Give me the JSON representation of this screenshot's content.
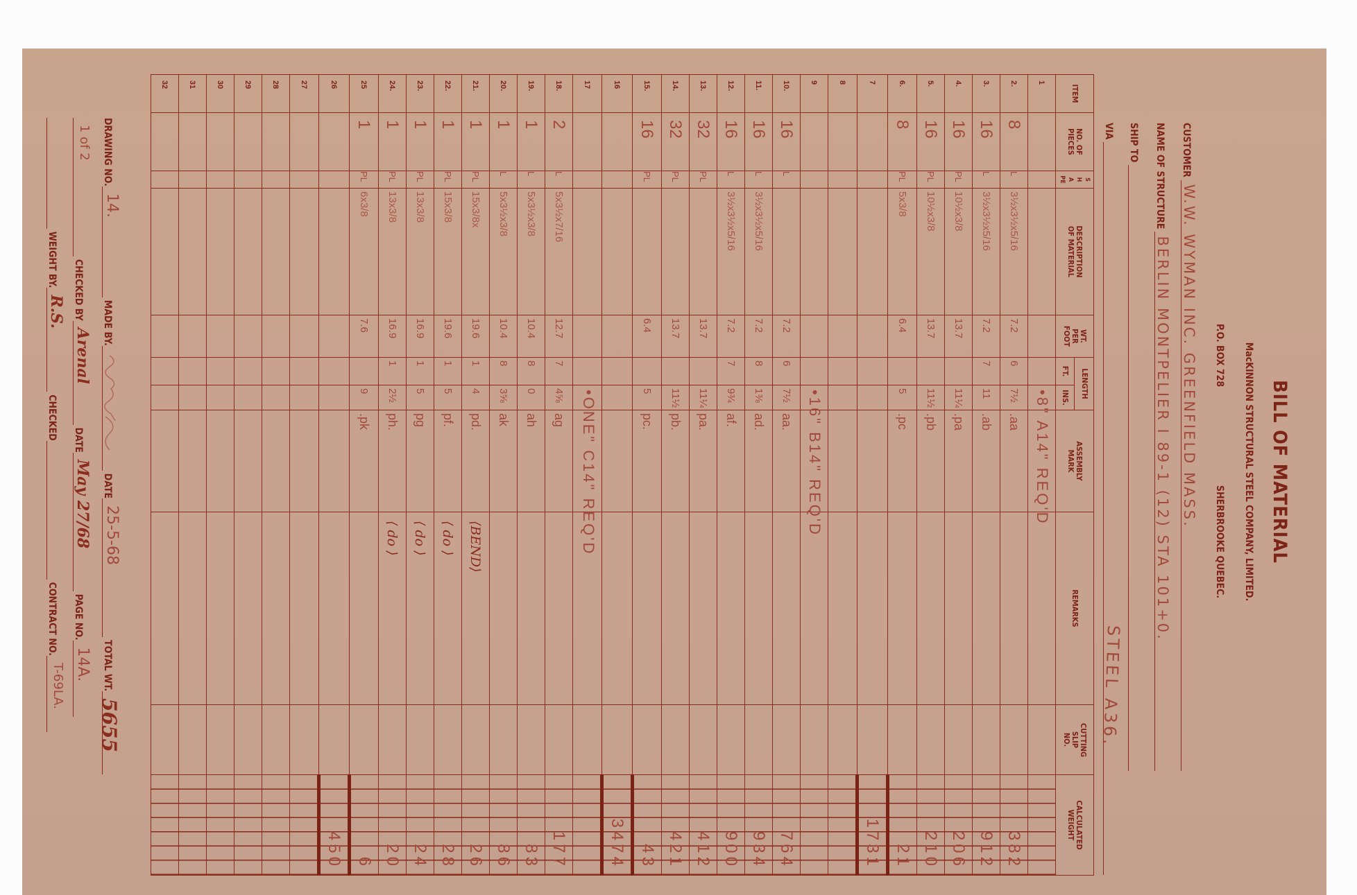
{
  "colors": {
    "paper": "#c8a38e",
    "ink_print": "#7c2418",
    "ink_hand": "#a14a3c",
    "rule": "#8a2a1a"
  },
  "header": {
    "title": "BILL OF MATERIAL",
    "company": "MacKINNON STRUCTURAL STEEL COMPANY, LIMITED.",
    "po_box": "P.O. BOX 728",
    "city": "SHERBROOKE QUEBEC.",
    "customer_label": "CUSTOMER",
    "customer_value": "W.W. WYMAN INC. GREENFIELD MASS.",
    "structure_label": "NAME OF STRUCTURE",
    "structure_value": "BERLIN MONTPELIER I 89-1 (12) STA 101+0.",
    "ship_to_label": "SHIP TO",
    "ship_to_value": "",
    "via_label": "VIA",
    "via_value": "",
    "steel_note": "STEEL A36."
  },
  "table": {
    "columns": {
      "item": "ITEM",
      "pieces": "NO. OF PIECES",
      "shape": "SHAPE",
      "description": "DESCRIPTION OF MATERIAL",
      "wt_per_foot": "WT. PER FOOT",
      "length": "LENGTH",
      "ft": "FT.",
      "ins": "INS.",
      "assembly_mark": "ASSEMBLY MARK",
      "remarks": "REMARKS",
      "cutting_slip": "CUTTING SLIP NO.",
      "calc_weight": "CALCULATED WEIGHT"
    },
    "rows": [
      {
        "item": "1",
        "note": "•8\" A14\" REQ'D"
      },
      {
        "item": "2.",
        "pieces": "8",
        "shape": "L",
        "desc": "3½x3½x5/16",
        "wpf": "7.2",
        "ft": "6",
        "ins": "7½",
        "mark": ".aa",
        "weight": "382"
      },
      {
        "item": "3.",
        "pieces": "16",
        "shape": "L",
        "desc": "3½x3½x5/16",
        "wpf": "7.2",
        "ft": "7",
        "ins": "11",
        "mark": ".ab",
        "weight": "912"
      },
      {
        "item": "4.",
        "pieces": "16",
        "shape": "PL",
        "desc": "10½x3/8",
        "wpf": "13.7",
        "ft": "",
        "ins": "11¼",
        "mark": ".pa",
        "weight": "206"
      },
      {
        "item": "5.",
        "pieces": "16",
        "shape": "PL",
        "desc": "10½x3/8",
        "wpf": "13.7",
        "ft": "",
        "ins": "11½",
        "mark": ".pb",
        "weight": "210"
      },
      {
        "item": "6.",
        "pieces": "8",
        "shape": "PL",
        "desc": "5x3/8",
        "wpf": "6.4",
        "ft": "",
        "ins": "5",
        "mark": ".pc",
        "weight": "21"
      },
      {
        "item": "7",
        "weight": "1731",
        "subtotal": true
      },
      {
        "item": "8"
      },
      {
        "item": "9",
        "note": "•16\" B14\" REQ'D"
      },
      {
        "item": "10.",
        "pieces": "16",
        "shape": "L",
        "desc": "",
        "wpf": "7.2",
        "ft": "6",
        "ins": "7½",
        "mark": "aa.",
        "weight": "764"
      },
      {
        "item": "11.",
        "pieces": "16",
        "shape": "L",
        "desc": "3½x3½x5/16",
        "wpf": "7.2",
        "ft": "8",
        "ins": "1⅜",
        "mark": "ad.",
        "weight": "934"
      },
      {
        "item": "12.",
        "pieces": "16",
        "shape": "L",
        "desc": "3½x3½x5/16",
        "wpf": "7.2",
        "ft": "7",
        "ins": "9¾",
        "mark": "af.",
        "weight": "900"
      },
      {
        "item": "13.",
        "pieces": "32",
        "shape": "PL",
        "desc": "",
        "wpf": "13.7",
        "ft": "",
        "ins": "11¼",
        "mark": "pa.",
        "weight": "412"
      },
      {
        "item": "14.",
        "pieces": "32",
        "shape": "PL",
        "desc": "",
        "wpf": "13.7",
        "ft": "",
        "ins": "11½",
        "mark": "pb.",
        "weight": "421"
      },
      {
        "item": "15.",
        "pieces": "16",
        "shape": "PL",
        "desc": "",
        "wpf": "6.4",
        "ft": "",
        "ins": "5",
        "mark": "pc.",
        "weight": "43"
      },
      {
        "item": "16",
        "weight": "3474",
        "subtotal": true
      },
      {
        "item": "17",
        "note": "•ONE\" C14\" REQ'D"
      },
      {
        "item": "18.",
        "pieces": "2",
        "shape": "L",
        "desc": "5x3½x7/16",
        "wpf": "12.7",
        "ft": "7",
        "ins": "4⅝",
        "mark": "ag",
        "weight": "177"
      },
      {
        "item": "19.",
        "pieces": "1",
        "shape": "L",
        "desc": "5x3½x3/8",
        "wpf": "10.4",
        "ft": "8",
        "ins": "0",
        "mark": "ah",
        "weight": "83"
      },
      {
        "item": "20.",
        "pieces": "1",
        "shape": "L",
        "desc": "5x3½x3/8",
        "wpf": "10.4",
        "ft": "8",
        "ins": "3⅝",
        "mark": "ak",
        "weight": "86"
      },
      {
        "item": "21.",
        "pieces": "1",
        "shape": "PL",
        "desc": "15x3/8x",
        "wpf": "19.6",
        "ft": "1",
        "ins": "4",
        "mark": "pd.",
        "remarks": "⟨BEND⟩",
        "weight": "26"
      },
      {
        "item": "22.",
        "pieces": "1",
        "shape": "PL",
        "desc": "15x3/8",
        "wpf": "19.6",
        "ft": "1",
        "ins": "5",
        "mark": "pf.",
        "remarks": "⟨ do ⟩",
        "weight": "28"
      },
      {
        "item": "23.",
        "pieces": "1",
        "shape": "PL",
        "desc": "13x3/8",
        "wpf": "16.9",
        "ft": "1",
        "ins": "5",
        "mark": "pg",
        "remarks": "⟨ do ⟩",
        "weight": "24"
      },
      {
        "item": "24.",
        "pieces": "1",
        "shape": "PL",
        "desc": "13x3/8",
        "wpf": "16.9",
        "ft": "1",
        "ins": "2½",
        "mark": "ph.",
        "remarks": "⟨ do ⟩",
        "weight": "20"
      },
      {
        "item": "25",
        "pieces": "1",
        "shape": "PL",
        "desc": "6x3/8",
        "wpf": "7.6",
        "ft": "",
        "ins": "9",
        "mark": ".pk",
        "weight": "6"
      },
      {
        "item": "26",
        "weight": "450",
        "subtotal": true
      },
      {
        "item": "27"
      },
      {
        "item": "28"
      },
      {
        "item": "29"
      },
      {
        "item": "30"
      },
      {
        "item": "31"
      },
      {
        "item": "32"
      }
    ]
  },
  "footer": {
    "drawing_no_label": "DRAWING NO.",
    "drawing_no_value": "14.",
    "sheet_value": "1 of 2",
    "made_by_label": "MADE BY.",
    "date_label": "DATE",
    "date_value": "25-5-68",
    "total_wt_label": "TOTAL WT.",
    "total_wt_value": "5655",
    "checked_by_label": "CHECKED BY",
    "checked_by_value": "Arenal",
    "date2_label": "DATE",
    "date2_value": "May 27/68",
    "page_no_label": "PAGE NO.",
    "page_no_value": "14A.",
    "weight_by_label": "WEIGHT BY.",
    "weight_by_value": "R.S.",
    "checked_label": "CHECKED",
    "checked_value": "",
    "contract_no_label": "CONTRACT NO.",
    "contract_no_value": "T-69LA."
  }
}
